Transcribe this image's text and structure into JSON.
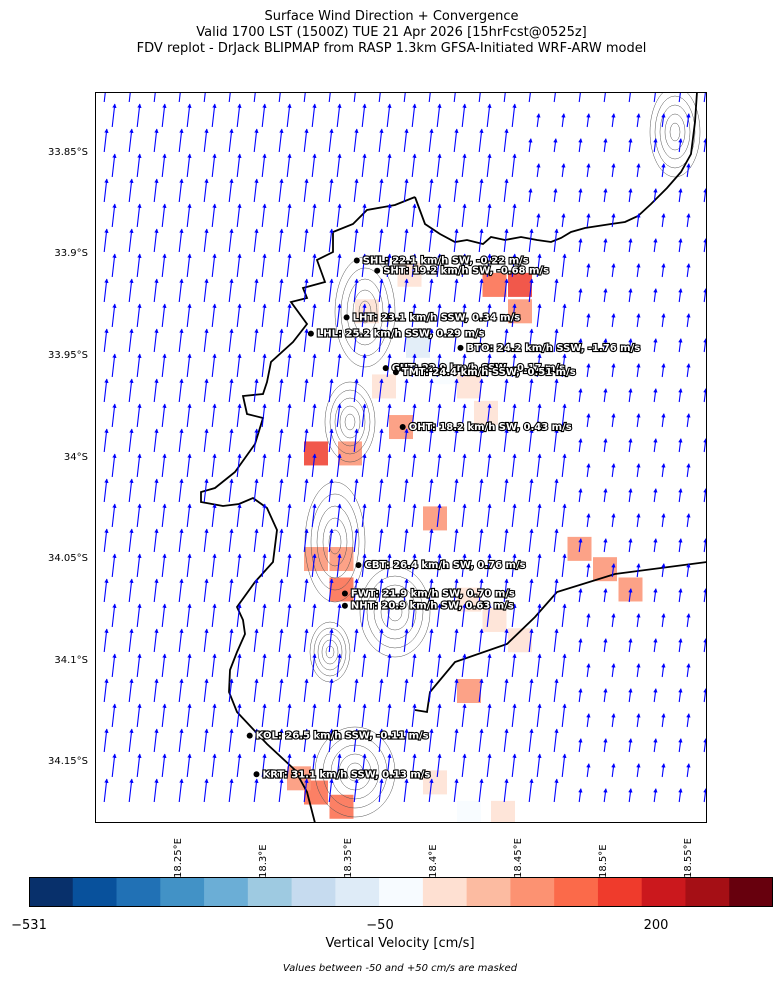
{
  "titles": [
    "Surface Wind Direction + Convergence",
    "Valid 1700 LST (1500Z) TUE 21 Apr 2026 [15hrFcst@0525z]",
    "FDV replot - DrJack BLIPMAP from RASP 1.3km GFSA-Initiated WRF-ARW model"
  ],
  "map": {
    "lon_range": [
      18.2,
      18.56
    ],
    "lat_range": [
      -34.18,
      -33.82
    ],
    "lat_ticks": [
      {
        "value": -33.85,
        "label": "33.85°S"
      },
      {
        "value": -33.9,
        "label": "33.9°S"
      },
      {
        "value": -33.95,
        "label": "33.95°S"
      },
      {
        "value": -34.0,
        "label": "34°S"
      },
      {
        "value": -34.05,
        "label": "34.05°S"
      },
      {
        "value": -34.1,
        "label": "34.1°S"
      },
      {
        "value": -34.15,
        "label": "34.15°S"
      }
    ],
    "lon_ticks": [
      {
        "value": 18.25,
        "label": "18.25°E"
      },
      {
        "value": 18.3,
        "label": "18.3°E"
      },
      {
        "value": 18.35,
        "label": "18.35°E"
      },
      {
        "value": 18.4,
        "label": "18.4°E"
      },
      {
        "value": 18.45,
        "label": "18.45°E"
      },
      {
        "value": 18.5,
        "label": "18.5°E"
      },
      {
        "value": 18.55,
        "label": "18.55°E"
      }
    ],
    "wind_vector_color": "#0000ff",
    "stations": [
      {
        "code": "SHL",
        "lon": 18.354,
        "lat": -33.903,
        "text": "SHL: 22.1 km/h SW, -0.22 m/s"
      },
      {
        "code": "SHT",
        "lon": 18.366,
        "lat": -33.908,
        "text": "SHT: 19.2 km/h SW, -0.68 m/s"
      },
      {
        "code": "LHT",
        "lon": 18.348,
        "lat": -33.931,
        "text": "LHT: 23.1 km/h SSW, 0.34 m/s"
      },
      {
        "code": "LHL",
        "lon": 18.327,
        "lat": -33.939,
        "text": "LHL: 25.2 km/h SSW, 0.29 m/s"
      },
      {
        "code": "BTO",
        "lon": 18.415,
        "lat": -33.946,
        "text": "BTO: 24.2 km/h SSW, -1.76 m/s"
      },
      {
        "code": "GUT",
        "lon": 18.371,
        "lat": -33.956,
        "text": "GUT: 22.9 km/h SSW, -0.17 m/s"
      },
      {
        "code": "TMT",
        "lon": 18.377,
        "lat": -33.958,
        "text": "TMT: 24.4 km/h SSW, -0.51 m/s"
      },
      {
        "code": "OHT",
        "lon": 18.381,
        "lat": -33.985,
        "text": "OHT: 18.2 km/h SW, 0.43 m/s"
      },
      {
        "code": "CBT",
        "lon": 18.355,
        "lat": -34.053,
        "text": "CBT: 26.4 km/h SW, 0.76 m/s"
      },
      {
        "code": "FWT",
        "lon": 18.347,
        "lat": -34.067,
        "text": "FWT: 21.9 km/h SW, 0.70 m/s"
      },
      {
        "code": "NHT",
        "lon": 18.347,
        "lat": -34.073,
        "text": "NHT: 20.9 km/h SW, 0.63 m/s"
      },
      {
        "code": "KOL",
        "lon": 18.291,
        "lat": -34.137,
        "text": "KOL: 26.5 km/h SSW, -0.11 m/s"
      },
      {
        "code": "KRT",
        "lon": 18.295,
        "lat": -34.156,
        "text": "KRT: 31.1 km/h SSW, 0.13 m/s"
      }
    ],
    "velocity_cells": [
      {
        "lon": 18.45,
        "lat": -33.915,
        "value": 180
      },
      {
        "lon": 18.435,
        "lat": -33.915,
        "value": 110
      },
      {
        "lon": 18.45,
        "lat": -33.928,
        "value": 60
      },
      {
        "lon": 18.38,
        "lat": -33.985,
        "value": 70
      },
      {
        "lon": 18.33,
        "lat": -33.998,
        "value": 150
      },
      {
        "lon": 18.35,
        "lat": -33.998,
        "value": 80
      },
      {
        "lon": 18.345,
        "lat": -34.05,
        "value": 75
      },
      {
        "lon": 18.345,
        "lat": -34.065,
        "value": 90
      },
      {
        "lon": 18.33,
        "lat": -34.05,
        "value": 60
      },
      {
        "lon": 18.5,
        "lat": -34.055,
        "value": 70
      },
      {
        "lon": 18.515,
        "lat": -34.065,
        "value": 60
      },
      {
        "lon": 18.485,
        "lat": -34.045,
        "value": 55
      },
      {
        "lon": 18.42,
        "lat": -34.115,
        "value": 65
      },
      {
        "lon": 18.33,
        "lat": -34.165,
        "value": 130
      },
      {
        "lon": 18.345,
        "lat": -34.172,
        "value": 120
      },
      {
        "lon": 18.32,
        "lat": -34.158,
        "value": 70
      },
      {
        "lon": 18.4,
        "lat": -34.03,
        "value": 55
      },
      {
        "lon": 18.385,
        "lat": -33.91,
        "value": -70
      },
      {
        "lon": 18.39,
        "lat": -33.945,
        "value": -150
      },
      {
        "lon": 18.405,
        "lat": -33.958,
        "value": -90
      },
      {
        "lon": 18.37,
        "lat": -33.965,
        "value": -60
      },
      {
        "lon": 18.42,
        "lat": -33.965,
        "value": -60
      },
      {
        "lon": 18.43,
        "lat": -33.978,
        "value": -55
      },
      {
        "lon": 18.36,
        "lat": -33.928,
        "value": -70
      },
      {
        "lon": 18.42,
        "lat": -34.07,
        "value": -60
      },
      {
        "lon": 18.435,
        "lat": -34.08,
        "value": -55
      },
      {
        "lon": 18.45,
        "lat": -34.09,
        "value": -55
      },
      {
        "lon": 18.4,
        "lat": -34.16,
        "value": -60
      },
      {
        "lon": 18.42,
        "lat": -34.175,
        "value": -80
      },
      {
        "lon": 18.44,
        "lat": -34.175,
        "value": -60
      }
    ]
  },
  "colorbar": {
    "label": "Vertical Velocity [cm/s]",
    "tick_labels": [
      {
        "value": -531,
        "label": "−531"
      },
      {
        "value": -50,
        "label": "−50"
      },
      {
        "value": 200,
        "label": "200"
      }
    ],
    "colors": [
      "#08306b",
      "#08519c",
      "#2171b5",
      "#4292c6",
      "#6baed6",
      "#9ecae1",
      "#c6dbef",
      "#deebf7",
      "#f7fbff",
      "#fee0d2",
      "#fcbba1",
      "#fc9272",
      "#fb6a4a",
      "#ef3b2c",
      "#cb181d",
      "#a50f15",
      "#67000d"
    ],
    "note": "Values between -50 and +50 cm/s are masked"
  }
}
